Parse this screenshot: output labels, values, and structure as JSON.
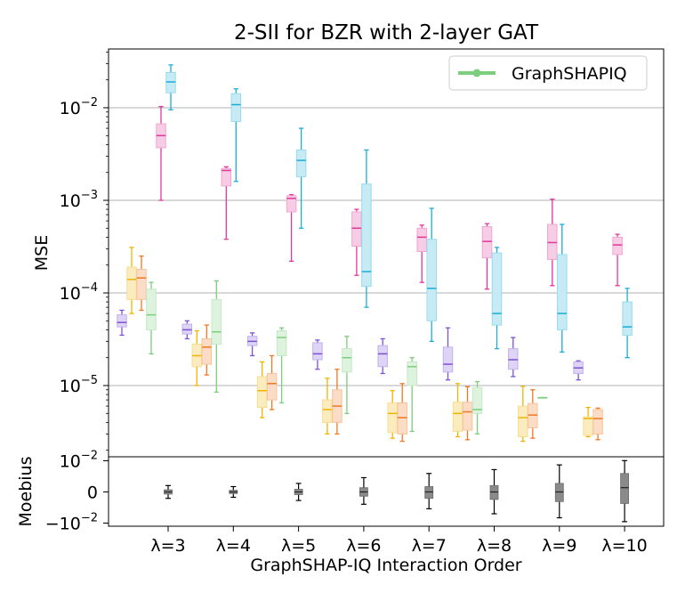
{
  "chart_data": [
    {
      "type": "box",
      "title": "2-SII for BZR with 2-layer GAT",
      "ylabel": "MSE",
      "yscale": "log",
      "ylim": [
        2e-06,
        0.05
      ],
      "yticks": [
        {
          "value": 0.01,
          "base": "10",
          "exp": "−2"
        },
        {
          "value": 0.001,
          "base": "10",
          "exp": "−3"
        },
        {
          "value": 0.0001,
          "base": "10",
          "exp": "−4"
        },
        {
          "value": 1e-05,
          "base": "10",
          "exp": "−5"
        }
      ],
      "grid": "y-major",
      "legend": {
        "position": "top-right",
        "entries": [
          {
            "label": "GraphSHAPIQ",
            "color": "#7ccd7c"
          }
        ]
      },
      "groups": [
        "λ=3",
        "λ=4",
        "λ=5",
        "λ=6",
        "λ=7",
        "λ=8",
        "λ=9",
        "λ=10"
      ],
      "series": [
        {
          "name": "purple",
          "color": "#7b52d6",
          "boxes": [
            {
              "whislo": 3.5e-05,
              "q1": 4.3e-05,
              "med": 4.8e-05,
              "q3": 5.8e-05,
              "whishi": 6.5e-05
            },
            {
              "whislo": 3.2e-05,
              "q1": 3.6e-05,
              "med": 4e-05,
              "q3": 4.6e-05,
              "whishi": 5e-05
            },
            {
              "whislo": 2.1e-05,
              "q1": 2.7e-05,
              "med": 3e-05,
              "q3": 3.4e-05,
              "whishi": 3.7e-05
            },
            {
              "whislo": 1.5e-05,
              "q1": 1.9e-05,
              "med": 2.2e-05,
              "q3": 2.9e-05,
              "whishi": 3.1e-05
            },
            {
              "whislo": 1.35e-05,
              "q1": 1.6e-05,
              "med": 2.2e-05,
              "q3": 2.7e-05,
              "whishi": 3.2e-05
            },
            {
              "whislo": 1.15e-05,
              "q1": 1.4e-05,
              "med": 1.7e-05,
              "q3": 2.6e-05,
              "whishi": 4.2e-05
            },
            {
              "whislo": 1.25e-05,
              "q1": 1.5e-05,
              "med": 1.9e-05,
              "q3": 2.5e-05,
              "whishi": 3.3e-05
            },
            {
              "whislo": 1.15e-05,
              "q1": 1.35e-05,
              "med": 1.55e-05,
              "q3": 1.8e-05,
              "whishi": 1.85e-05
            }
          ]
        },
        {
          "name": "yellow",
          "color": "#f0b400",
          "boxes": [
            {
              "whislo": 6e-05,
              "q1": 8.5e-05,
              "med": 0.00014,
              "q3": 0.00019,
              "whishi": 0.00031
            },
            {
              "whislo": 1e-05,
              "q1": 1.6e-05,
              "med": 2.1e-05,
              "q3": 2.8e-05,
              "whishi": 3.9e-05
            },
            {
              "whislo": 4.5e-06,
              "q1": 5.8e-06,
              "med": 8.8e-06,
              "q3": 1.25e-05,
              "whishi": 1.8e-05
            },
            {
              "whislo": 3e-06,
              "q1": 4e-06,
              "med": 5.5e-06,
              "q3": 7e-06,
              "whishi": 1.2e-05
            },
            {
              "whislo": 2.7e-06,
              "q1": 3.1e-06,
              "med": 5e-06,
              "q3": 6.5e-06,
              "whishi": 8.8e-06
            },
            {
              "whislo": 2.8e-06,
              "q1": 3.2e-06,
              "med": 5e-06,
              "q3": 6.6e-06,
              "whishi": 1.05e-05
            },
            {
              "whislo": 2.5e-06,
              "q1": 2.8e-06,
              "med": 4.5e-06,
              "q3": 6e-06,
              "whishi": 9.8e-06
            },
            {
              "whislo": 2.8e-06,
              "q1": 2.9e-06,
              "med": 4.4e-06,
              "q3": 4.6e-06,
              "whishi": 5.8e-06
            }
          ]
        },
        {
          "name": "orange",
          "color": "#f07820",
          "boxes": [
            {
              "whislo": 6.5e-05,
              "q1": 8.5e-05,
              "med": 0.000145,
              "q3": 0.00018,
              "whishi": 0.00025
            },
            {
              "whislo": 1.3e-05,
              "q1": 1.7e-05,
              "med": 2.6e-05,
              "q3": 3.2e-05,
              "whishi": 4.5e-05
            },
            {
              "whislo": 5.5e-06,
              "q1": 7e-06,
              "med": 1.05e-05,
              "q3": 1.35e-05,
              "whishi": 2.1e-05
            },
            {
              "whislo": 3e-06,
              "q1": 4e-06,
              "med": 6e-06,
              "q3": 9e-06,
              "whishi": 1.5e-05
            },
            {
              "whislo": 2.5e-06,
              "q1": 3e-06,
              "med": 4.5e-06,
              "q3": 6.5e-06,
              "whishi": 1.05e-05
            },
            {
              "whislo": 2.6e-06,
              "q1": 3.3e-06,
              "med": 5.2e-06,
              "q3": 6.6e-06,
              "whishi": 9.7e-06
            },
            {
              "whislo": 2.7e-06,
              "q1": 3.5e-06,
              "med": 4.8e-06,
              "q3": 6.4e-06,
              "whishi": 9e-06
            },
            {
              "whislo": 2.6e-06,
              "q1": 3e-06,
              "med": 4.4e-06,
              "q3": 5.5e-06,
              "whishi": 5.7e-06
            }
          ]
        },
        {
          "name": "green",
          "color": "#7ccd7c",
          "boxes": [
            {
              "whislo": 2.2e-05,
              "q1": 4e-05,
              "med": 5.8e-05,
              "q3": 0.00011,
              "whishi": 0.00013
            },
            {
              "whislo": 8.5e-06,
              "q1": 2.8e-05,
              "med": 3.8e-05,
              "q3": 8.5e-05,
              "whishi": 0.000135
            },
            {
              "whislo": 6.5e-06,
              "q1": 2.1e-05,
              "med": 3.3e-05,
              "q3": 3.9e-05,
              "whishi": 4.2e-05
            },
            {
              "whislo": 5e-06,
              "q1": 1.4e-05,
              "med": 2e-05,
              "q3": 2.5e-05,
              "whishi": 3.4e-05
            },
            {
              "whislo": 3.2e-06,
              "q1": 1e-05,
              "med": 1.6e-05,
              "q3": 1.8e-05,
              "whishi": 2e-05
            },
            {
              "whislo": 3e-06,
              "q1": 5e-06,
              "med": 5.5e-06,
              "q3": 9.5e-06,
              "whishi": 1.1e-05
            },
            {
              "whislo": 7.4e-06,
              "q1": 7.4e-06,
              "med": 7.4e-06,
              "q3": 7.4e-06,
              "whishi": 7.4e-06
            },
            null
          ]
        },
        {
          "name": "pink",
          "color": "#e0389a",
          "boxes": [
            {
              "whislo": 0.001,
              "q1": 0.0037,
              "med": 0.005,
              "q3": 0.0067,
              "whishi": 0.0103
            },
            {
              "whislo": 0.00038,
              "q1": 0.00143,
              "med": 0.0021,
              "q3": 0.0022,
              "whishi": 0.0023
            },
            {
              "whislo": 0.00022,
              "q1": 0.00075,
              "med": 0.00105,
              "q3": 0.00112,
              "whishi": 0.00115
            },
            {
              "whislo": 0.000155,
              "q1": 0.00032,
              "med": 0.0005,
              "q3": 0.00075,
              "whishi": 0.0008
            },
            {
              "whislo": 0.00013,
              "q1": 0.00028,
              "med": 0.0004,
              "q3": 0.0005,
              "whishi": 0.00054
            },
            {
              "whislo": 0.00011,
              "q1": 0.00024,
              "med": 0.00036,
              "q3": 0.00052,
              "whishi": 0.00056
            },
            {
              "whislo": 0.00012,
              "q1": 0.00023,
              "med": 0.00035,
              "q3": 0.00055,
              "whishi": 0.00103
            },
            {
              "whislo": 0.00012,
              "q1": 0.00026,
              "med": 0.00033,
              "q3": 0.0004,
              "whishi": 0.00043
            }
          ]
        },
        {
          "name": "cyan",
          "color": "#1aaed6",
          "boxes": [
            {
              "whislo": 0.0095,
              "q1": 0.0145,
              "med": 0.019,
              "q3": 0.024,
              "whishi": 0.029
            },
            {
              "whislo": 0.0016,
              "q1": 0.0071,
              "med": 0.0108,
              "q3": 0.0142,
              "whishi": 0.016
            },
            {
              "whislo": 0.0005,
              "q1": 0.0018,
              "med": 0.0027,
              "q3": 0.0035,
              "whishi": 0.006
            },
            {
              "whislo": 7e-05,
              "q1": 0.000118,
              "med": 0.00017,
              "q3": 0.0015,
              "whishi": 0.0035
            },
            {
              "whislo": 3e-05,
              "q1": 5e-05,
              "med": 0.000112,
              "q3": 0.00038,
              "whishi": 0.00082
            },
            {
              "whislo": 2.5e-05,
              "q1": 4.5e-05,
              "med": 6e-05,
              "q3": 0.00027,
              "whishi": 0.00031
            },
            {
              "whislo": 2.3e-05,
              "q1": 4e-05,
              "med": 6e-05,
              "q3": 0.00026,
              "whishi": 0.00055
            },
            {
              "whislo": 2e-05,
              "q1": 3.5e-05,
              "med": 4.3e-05,
              "q3": 8e-05,
              "whishi": 0.000112
            }
          ]
        }
      ]
    },
    {
      "type": "box",
      "ylabel": "Moebius",
      "yscale": "symlog",
      "ylim": [
        -0.012,
        0.012
      ],
      "yticks": [
        {
          "value": 0.01,
          "base": "10",
          "exp": "−2",
          "sign": ""
        },
        {
          "value": 0,
          "label": "0"
        },
        {
          "value": -0.01,
          "base": "10",
          "exp": "−2",
          "sign": "−"
        }
      ],
      "xlabel": "GraphSHAP-IQ Interaction Order",
      "color": "#7a7a7a",
      "boxes": [
        {
          "whislo": -0.0006,
          "q1": -0.0002,
          "med": 0.0,
          "q3": 0.0002,
          "whishi": 0.0006
        },
        {
          "whislo": -0.0005,
          "q1": -0.00015,
          "med": 0.0,
          "q3": 0.00015,
          "whishi": 0.0005
        },
        {
          "whislo": -0.0008,
          "q1": -0.00025,
          "med": 0.0,
          "q3": 0.00025,
          "whishi": 0.0008
        },
        {
          "whislo": -0.0012,
          "q1": -0.0004,
          "med": 0.0,
          "q3": 0.0004,
          "whishi": 0.0015
        },
        {
          "whislo": -0.002,
          "q1": -0.0006,
          "med": 0.0,
          "q3": 0.0005,
          "whishi": 0.0024
        },
        {
          "whislo": -0.0035,
          "q1": -0.0007,
          "med": 0.0,
          "q3": 0.0006,
          "whishi": 0.0037
        },
        {
          "whislo": -0.0055,
          "q1": -0.0009,
          "med": 0.0,
          "q3": 0.0008,
          "whishi": 0.0063
        },
        {
          "whislo": -0.0085,
          "q1": -0.0011,
          "med": 0.0004,
          "q3": 0.0024,
          "whishi": 0.0102
        }
      ]
    }
  ]
}
